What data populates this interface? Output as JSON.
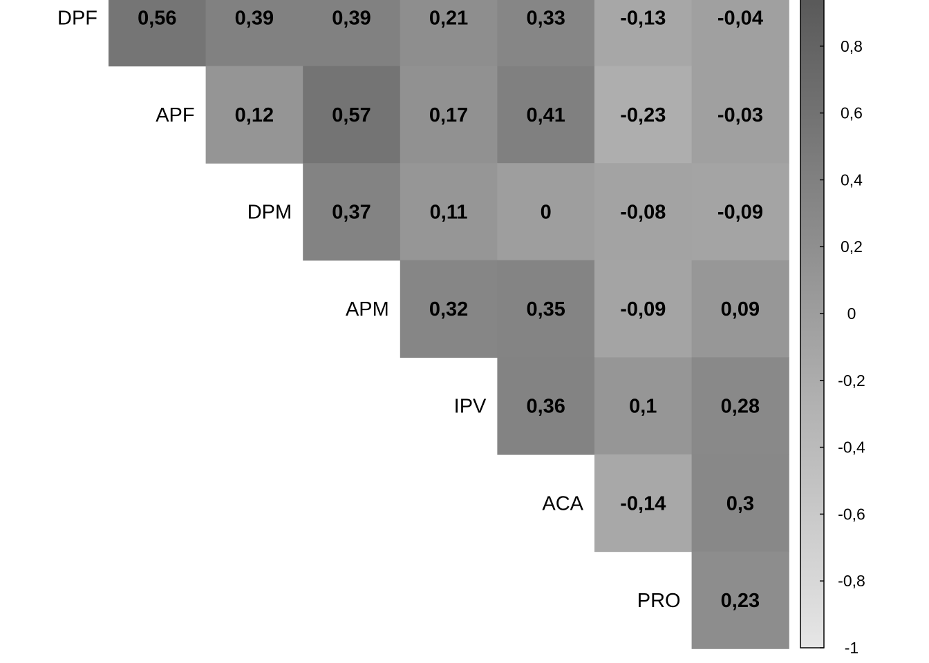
{
  "chart_data": {
    "type": "heatmap",
    "title": "",
    "variables": [
      "DPF",
      "APF",
      "DPM",
      "APM",
      "IPV",
      "ACA",
      "PRO"
    ],
    "rows": [
      {
        "label": "DPF",
        "values": [
          0.56,
          0.39,
          0.39,
          0.21,
          0.33,
          -0.13,
          -0.04
        ],
        "texts": [
          "0,56",
          "0,39",
          "0,39",
          "0,21",
          "0,33",
          "-0,13",
          "-0,04"
        ]
      },
      {
        "label": "APF",
        "values": [
          0.12,
          0.57,
          0.17,
          0.41,
          -0.23,
          -0.03
        ],
        "texts": [
          "0,12",
          "0,57",
          "0,17",
          "0,41",
          "-0,23",
          "-0,03"
        ]
      },
      {
        "label": "DPM",
        "values": [
          0.37,
          0.11,
          0,
          -0.08,
          -0.09
        ],
        "texts": [
          "0,37",
          "0,11",
          "0",
          "-0,08",
          "-0,09"
        ]
      },
      {
        "label": "APM",
        "values": [
          0.32,
          0.35,
          -0.09,
          0.09
        ],
        "texts": [
          "0,32",
          "0,35",
          "-0,09",
          "0,09"
        ]
      },
      {
        "label": "IPV",
        "values": [
          0.36,
          0.1,
          0.28
        ],
        "texts": [
          "0,36",
          "0,1",
          "0,28"
        ]
      },
      {
        "label": "ACA",
        "values": [
          -0.14,
          0.3
        ],
        "texts": [
          "-0,14",
          "0,3"
        ]
      },
      {
        "label": "PRO",
        "values": [
          0.23
        ],
        "texts": [
          "0,23"
        ]
      }
    ],
    "color_scale": {
      "min": -1,
      "max": 1,
      "low_color": "#e6e6e6",
      "high_color": "#555555"
    },
    "colorbar_ticks": [
      {
        "value": 0.8,
        "label": "0,8"
      },
      {
        "value": 0.6,
        "label": "0,6"
      },
      {
        "value": 0.4,
        "label": "0,4"
      },
      {
        "value": 0.2,
        "label": "0,2"
      },
      {
        "value": 0,
        "label": "0"
      },
      {
        "value": -0.2,
        "label": "-0,2"
      },
      {
        "value": -0.4,
        "label": "-0,4"
      },
      {
        "value": -0.6,
        "label": "-0,6"
      },
      {
        "value": -0.8,
        "label": "-0,8"
      },
      {
        "value": -1,
        "label": "-1"
      }
    ],
    "legend_placement": "right"
  }
}
